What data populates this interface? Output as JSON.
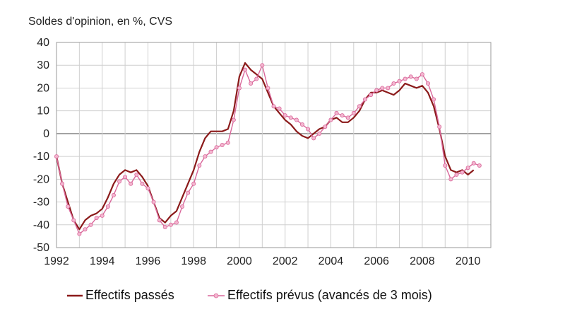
{
  "chart_data": {
    "type": "line",
    "title": "Soldes d'opinion, en %, CVS",
    "xlim": [
      1992,
      2011
    ],
    "ylim": [
      -50,
      40
    ],
    "x_ticks": [
      "1992",
      "1994",
      "1996",
      "1998",
      "2000",
      "2002",
      "2004",
      "2006",
      "2008",
      "2010"
    ],
    "y_ticks": [
      "40",
      "30",
      "20",
      "10",
      "0",
      "-10",
      "-20",
      "-30",
      "-40",
      "-50"
    ],
    "grid": true,
    "legend_position": "bottom",
    "series": [
      {
        "name": "Effectifs passés",
        "color": "#8b1a1a",
        "marker": "none",
        "x": [
          1992.0,
          1992.25,
          1992.5,
          1992.75,
          1993.0,
          1993.25,
          1993.5,
          1993.75,
          1994.0,
          1994.25,
          1994.5,
          1994.75,
          1995.0,
          1995.25,
          1995.5,
          1995.75,
          1996.0,
          1996.25,
          1996.5,
          1996.75,
          1997.0,
          1997.25,
          1997.5,
          1997.75,
          1998.0,
          1998.25,
          1998.5,
          1998.75,
          1999.0,
          1999.25,
          1999.5,
          1999.75,
          2000.0,
          2000.25,
          2000.5,
          2000.75,
          2001.0,
          2001.25,
          2001.5,
          2001.75,
          2002.0,
          2002.25,
          2002.5,
          2002.75,
          2003.0,
          2003.25,
          2003.5,
          2003.75,
          2004.0,
          2004.25,
          2004.5,
          2004.75,
          2005.0,
          2005.25,
          2005.5,
          2005.75,
          2006.0,
          2006.25,
          2006.5,
          2006.75,
          2007.0,
          2007.25,
          2007.5,
          2007.75,
          2008.0,
          2008.25,
          2008.5,
          2008.75,
          2009.0,
          2009.25,
          2009.5,
          2009.75,
          2010.0,
          2010.25
        ],
        "y": [
          -10,
          -22,
          -30,
          -38,
          -42,
          -38,
          -36,
          -35,
          -33,
          -28,
          -22,
          -18,
          -16,
          -17,
          -16,
          -19,
          -23,
          -30,
          -37,
          -39,
          -36,
          -34,
          -28,
          -22,
          -16,
          -8,
          -2,
          1,
          1,
          1,
          2,
          10,
          25,
          31,
          28,
          26,
          24,
          18,
          12,
          9,
          6,
          4,
          1,
          -1,
          -2,
          0,
          2,
          3,
          6,
          7,
          5,
          5,
          7,
          10,
          15,
          18,
          18,
          19,
          18,
          17,
          19,
          22,
          21,
          20,
          21,
          18,
          12,
          2,
          -10,
          -16,
          -17,
          -16,
          -18,
          -16
        ]
      },
      {
        "name": "Effectifs prévus (avancés de 3 mois)",
        "color": "#d9679a",
        "marker": "circle",
        "x": [
          1992.0,
          1992.25,
          1992.5,
          1992.75,
          1993.0,
          1993.25,
          1993.5,
          1993.75,
          1994.0,
          1994.25,
          1994.5,
          1994.75,
          1995.0,
          1995.25,
          1995.5,
          1995.75,
          1996.0,
          1996.25,
          1996.5,
          1996.75,
          1997.0,
          1997.25,
          1997.5,
          1997.75,
          1998.0,
          1998.25,
          1998.5,
          1998.75,
          1999.0,
          1999.25,
          1999.5,
          1999.75,
          2000.0,
          2000.25,
          2000.5,
          2000.75,
          2001.0,
          2001.25,
          2001.5,
          2001.75,
          2002.0,
          2002.25,
          2002.5,
          2002.75,
          2003.0,
          2003.25,
          2003.5,
          2003.75,
          2004.0,
          2004.25,
          2004.5,
          2004.75,
          2005.0,
          2005.25,
          2005.5,
          2005.75,
          2006.0,
          2006.25,
          2006.5,
          2006.75,
          2007.0,
          2007.25,
          2007.5,
          2007.75,
          2008.0,
          2008.25,
          2008.5,
          2008.75,
          2009.0,
          2009.25,
          2009.5,
          2009.75,
          2010.0,
          2010.25,
          2010.5
        ],
        "y": [
          -10,
          -22,
          -32,
          -38,
          -44,
          -42,
          -40,
          -37,
          -36,
          -32,
          -27,
          -21,
          -19,
          -22,
          -18,
          -22,
          -24,
          -30,
          -38,
          -41,
          -40,
          -39,
          -32,
          -26,
          -22,
          -14,
          -10,
          -8,
          -6,
          -5,
          -4,
          6,
          20,
          28,
          22,
          24,
          30,
          20,
          12,
          11,
          8,
          7,
          6,
          4,
          2,
          -2,
          0,
          3,
          6,
          9,
          8,
          7,
          9,
          12,
          15,
          17,
          19,
          20,
          20,
          22,
          23,
          24,
          25,
          24,
          26,
          22,
          15,
          3,
          -14,
          -20,
          -18,
          -17,
          -15,
          -13,
          -14
        ]
      }
    ]
  }
}
